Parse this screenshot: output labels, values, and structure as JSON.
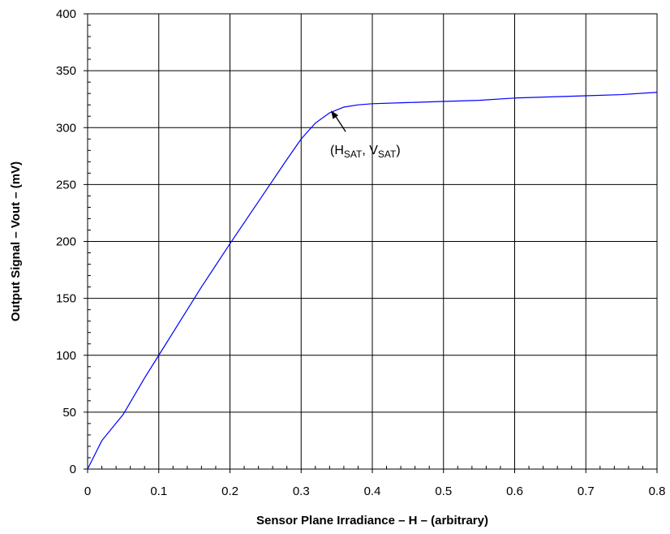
{
  "chart_data": {
    "type": "line",
    "xlabel": "Sensor Plane Irradiance – H – (arbitrary)",
    "ylabel": "Output Signal – Vout – (mV)",
    "xlim": [
      0,
      0.8
    ],
    "ylim": [
      0,
      400
    ],
    "x_ticks": [
      "0",
      "0.1",
      "0.2",
      "0.3",
      "0.4",
      "0.5",
      "0.6",
      "0.7",
      "0.8"
    ],
    "y_ticks": [
      "0",
      "50",
      "100",
      "150",
      "200",
      "250",
      "300",
      "350",
      "400"
    ],
    "grid": true,
    "series": [
      {
        "color": "#0000ff",
        "x": [
          0,
          0.02,
          0.05,
          0.08,
          0.1,
          0.13,
          0.16,
          0.2,
          0.24,
          0.28,
          0.3,
          0.32,
          0.34,
          0.36,
          0.38,
          0.4,
          0.45,
          0.5,
          0.55,
          0.6,
          0.65,
          0.7,
          0.75,
          0.8
        ],
        "y": [
          0,
          25,
          48,
          80,
          100,
          130,
          160,
          198,
          235,
          272,
          290,
          304,
          313,
          318,
          320,
          321,
          322,
          323,
          324,
          326,
          327,
          328,
          329,
          331
        ]
      }
    ],
    "annotation": {
      "base": "(H",
      "sub1": "SAT",
      "mid": ", V",
      "sub2": "SAT",
      "end": ")",
      "point": [
        0.342,
        315
      ]
    }
  }
}
